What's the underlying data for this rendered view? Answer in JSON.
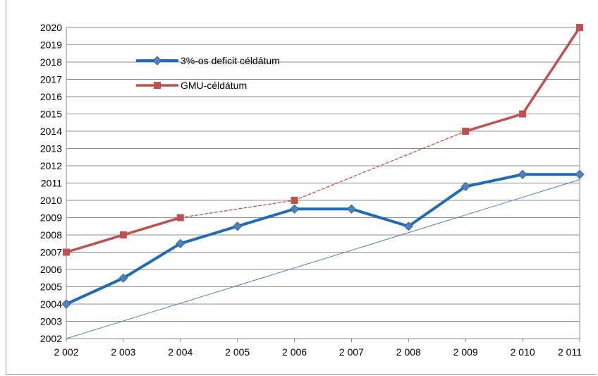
{
  "chart_data": {
    "type": "line",
    "title": "",
    "xlabel": "",
    "ylabel": "",
    "x_tick_labels": [
      "2 002",
      "2 003",
      "2 004",
      "2 005",
      "2 006",
      "2 007",
      "2 008",
      "2 009",
      "2 010",
      "2 011"
    ],
    "x": [
      2002,
      2003,
      2004,
      2005,
      2006,
      2007,
      2008,
      2009,
      2010,
      2011
    ],
    "ylim": [
      2002,
      2020
    ],
    "y_ticks": [
      2002,
      2003,
      2004,
      2005,
      2006,
      2007,
      2008,
      2009,
      2010,
      2011,
      2012,
      2013,
      2014,
      2015,
      2016,
      2017,
      2018,
      2019,
      2020
    ],
    "grid": true,
    "legend_position": "top-left",
    "series": [
      {
        "name": "3%-os deficit céldátum",
        "color": "#1f6cb6",
        "marker": "diamond",
        "values": [
          2004,
          2005.5,
          2007.5,
          2008.5,
          2009.5,
          2009.5,
          2008.5,
          2010.8,
          2011.5,
          2011.5
        ]
      },
      {
        "name": "GMU-céldátum",
        "color": "#c0504d",
        "marker": "square",
        "points": [
          {
            "x": 2002,
            "y": 2007
          },
          {
            "x": 2003,
            "y": 2008
          },
          {
            "x": 2004,
            "y": 2009
          },
          {
            "x": 2006,
            "y": 2010
          },
          {
            "x": 2009,
            "y": 2014
          },
          {
            "x": 2010,
            "y": 2015
          },
          {
            "x": 2011,
            "y": 2020
          }
        ],
        "dashed_segments": [
          [
            2004,
            2006
          ],
          [
            2006,
            2009
          ]
        ]
      },
      {
        "name": "",
        "color": "#4f81bd",
        "style": "thin",
        "points": [
          {
            "x": 2002,
            "y": 2002
          },
          {
            "x": 2011,
            "y": 2011.2
          }
        ]
      }
    ]
  }
}
